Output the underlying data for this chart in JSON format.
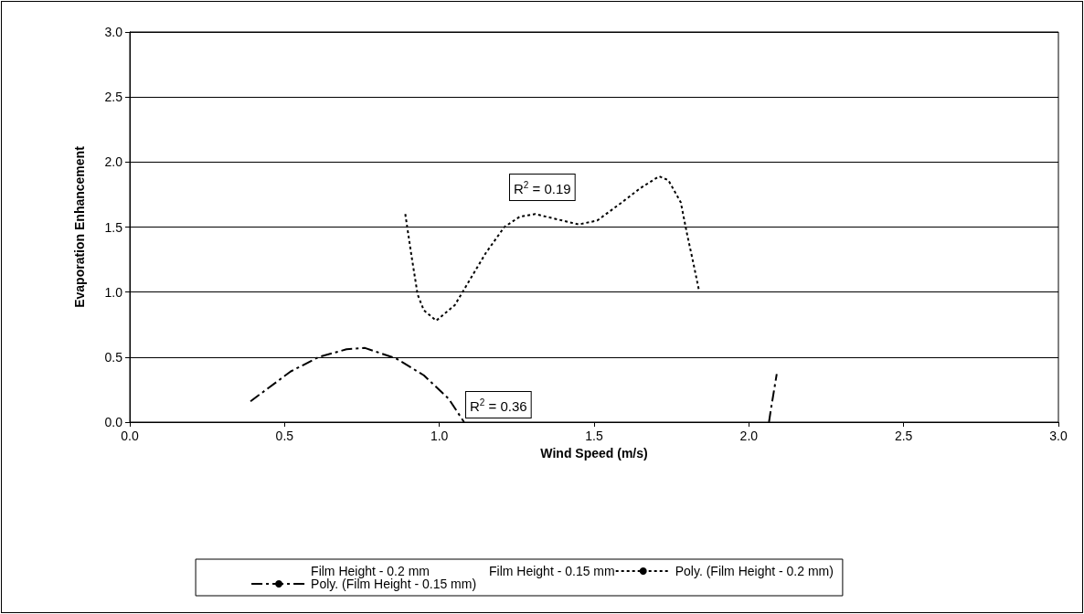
{
  "chart_data": {
    "type": "line",
    "xlabel": "Wind Speed (m/s)",
    "ylabel": "Evaporation Enhancement",
    "xlim": [
      0,
      3
    ],
    "xticks": [
      {
        "value": 0,
        "label": "0.0"
      },
      {
        "value": 0.5,
        "label": "0.5"
      },
      {
        "value": 1,
        "label": "1.0"
      },
      {
        "value": 1.5,
        "label": "1.5"
      },
      {
        "value": 2,
        "label": "2.0"
      },
      {
        "value": 2.5,
        "label": "2.5"
      },
      {
        "value": 3,
        "label": "3.0"
      }
    ],
    "ylim": [
      0,
      3
    ],
    "yticks": [
      {
        "value": 0,
        "label": "0.0"
      },
      {
        "value": 0.5,
        "label": "0.5"
      },
      {
        "value": 1,
        "label": "1.0"
      },
      {
        "value": 1.5,
        "label": "1.5"
      },
      {
        "value": 2,
        "label": "2.0"
      },
      {
        "value": 2.5,
        "label": "2.5"
      },
      {
        "value": 3,
        "label": "3.0"
      }
    ],
    "grid": "y",
    "legend": "bottom",
    "marker": "none",
    "series": [
      {
        "name": "Film Height - 0.2 mm",
        "type": "scatter",
        "color": "#000000"
      },
      {
        "name": "Film Height - 0.15 mm",
        "type": "scatter",
        "color": "#000000"
      },
      {
        "name": "Poly. (Film Height - 0.2 mm)",
        "line_style": "dotted",
        "color": "#000000",
        "x": [
          0.89,
          0.91,
          0.93,
          0.95,
          0.99,
          1.05,
          1.1,
          1.15,
          1.21,
          1.26,
          1.31,
          1.38,
          1.45,
          1.51,
          1.59,
          1.65,
          1.71,
          1.74,
          1.78,
          1.8,
          1.82,
          1.84
        ],
        "values": [
          1.6,
          1.28,
          0.98,
          0.86,
          0.78,
          0.9,
          1.1,
          1.3,
          1.5,
          1.58,
          1.6,
          1.56,
          1.52,
          1.55,
          1.69,
          1.8,
          1.89,
          1.86,
          1.69,
          1.45,
          1.23,
          1.0
        ]
      },
      {
        "name": "Poly. (Film Height - 0.15 mm)",
        "line_style": "dashed",
        "color": "#000000",
        "x": [
          0.39,
          0.52,
          0.61,
          0.7,
          0.76,
          0.86,
          0.95,
          1.03,
          1.08,
          1.5,
          2.065,
          2.07,
          2.09
        ],
        "values": [
          0.16,
          0.39,
          0.5,
          0.56,
          0.57,
          0.49,
          0.36,
          0.18,
          0.0,
          null,
          0.0,
          0.08,
          0.37
        ]
      }
    ],
    "annotations": [
      "R$^{2}$ = 0.19",
      "R$^{2}$ = 0.36"
    ]
  }
}
